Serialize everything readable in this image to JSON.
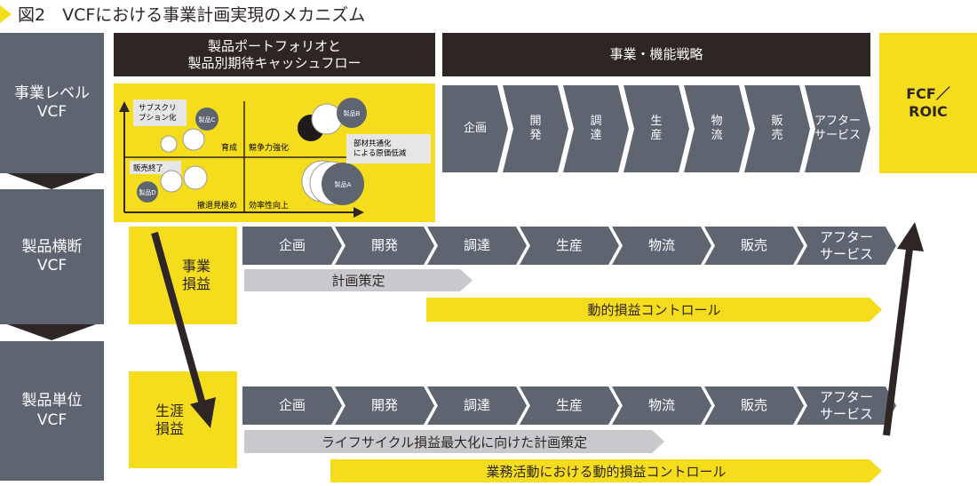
{
  "title": "図2　VCFにおける事業計画実現のメカニズム",
  "colors": {
    "gray": "#5f6570",
    "dark": "#2e2624",
    "yellow": "#f5dc1c",
    "light_gray": "#c8c9cc"
  },
  "levels": [
    "事業レベル\nVCF",
    "製品横断\nVCF",
    "製品単位\nVCF"
  ],
  "headers": {
    "portfolio": "製品ポートフォリオと\n製品別期待キャッシュフロー",
    "strategy": "事業・機能戦略"
  },
  "fcf": "FCF／\nROIC",
  "quadrant": {
    "q1": "育成",
    "q2": "競争力強化",
    "q3": "撤退見極め",
    "q4": "効率性向上",
    "product_a": "製品A",
    "product_b": "製品B",
    "product_c": "製品C",
    "product_d": "製品D",
    "callout_c": "サブスクリ\nプション化",
    "callout_d": "販売終了",
    "callout_b": "部材共通化\nによる原価低減"
  },
  "top_chain": [
    "企画",
    "開\n発",
    "調\n達",
    "生\n産",
    "物\n流",
    "販\n売",
    "アフター\nサービス"
  ],
  "chain": [
    "企画",
    "開発",
    "調達",
    "生産",
    "物流",
    "販売",
    "アフター\nサービス"
  ],
  "middle": {
    "label": "事業\n損益",
    "plan": "計画策定",
    "control": "動的損益コントロール"
  },
  "bottom": {
    "label": "生涯\n損益",
    "plan": "ライフサイクル損益最大化に向けた計画策定",
    "control": "業務活動における動的損益コントロール"
  }
}
